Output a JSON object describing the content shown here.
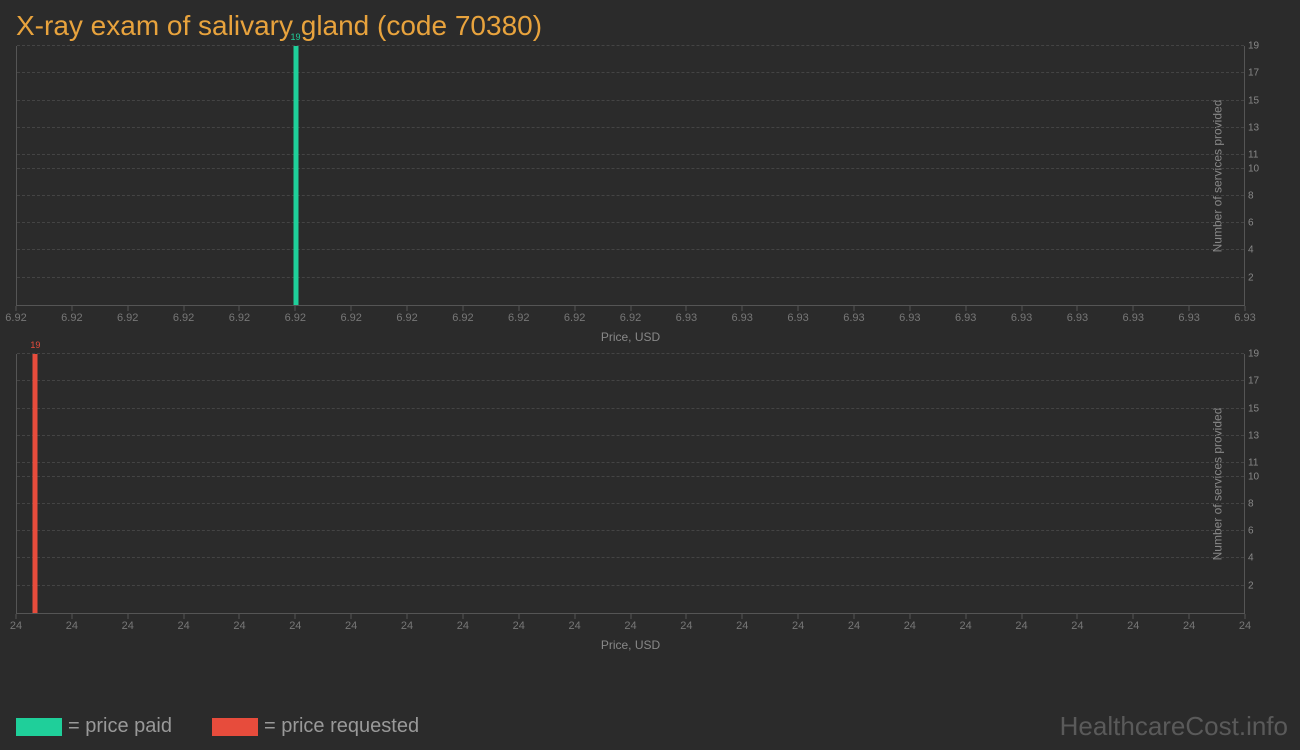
{
  "title": "X-ray exam of salivary gland (code 70380)",
  "background_color": "#2b2b2b",
  "title_color": "#e8a33d",
  "axis_color": "#555555",
  "grid_color": "#444444",
  "tick_text_color": "#888888",
  "chart1": {
    "type": "bar",
    "bar_color": "#1fcf9a",
    "bar_position_pct": 22.7,
    "bar_value": 19,
    "bar_label": "19",
    "x_ticks": [
      "6.92",
      "6.92",
      "6.92",
      "6.92",
      "6.92",
      "6.92",
      "6.92",
      "6.92",
      "6.92",
      "6.92",
      "6.92",
      "6.92",
      "6.93",
      "6.93",
      "6.93",
      "6.93",
      "6.93",
      "6.93",
      "6.93",
      "6.93",
      "6.93",
      "6.93",
      "6.93"
    ],
    "y_ticks": [
      "2",
      "4",
      "6",
      "8",
      "10",
      "11",
      "13",
      "15",
      "17",
      "19"
    ],
    "y_max": 19,
    "xlabel": "Price, USD",
    "ylabel": "Number of services provided"
  },
  "chart2": {
    "type": "bar",
    "bar_color": "#e74c3c",
    "bar_position_pct": 1.5,
    "bar_value": 19,
    "bar_label": "19",
    "x_ticks": [
      "24",
      "24",
      "24",
      "24",
      "24",
      "24",
      "24",
      "24",
      "24",
      "24",
      "24",
      "24",
      "24",
      "24",
      "24",
      "24",
      "24",
      "24",
      "24",
      "24",
      "24",
      "24",
      "24"
    ],
    "y_ticks": [
      "2",
      "4",
      "6",
      "8",
      "10",
      "11",
      "13",
      "15",
      "17",
      "19"
    ],
    "y_max": 19,
    "xlabel": "Price, USD",
    "ylabel": "Number of services provided"
  },
  "legend": {
    "items": [
      {
        "color": "#1fcf9a",
        "label": "= price paid"
      },
      {
        "color": "#e74c3c",
        "label": "= price requested"
      }
    ]
  },
  "watermark": "HealthcareCost.info"
}
